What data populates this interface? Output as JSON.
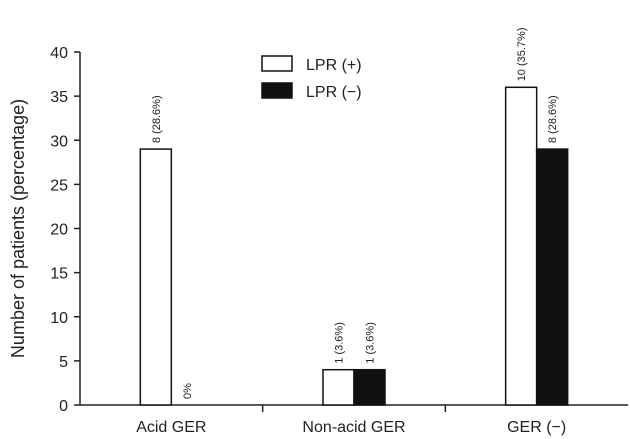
{
  "chart_data": {
    "type": "bar",
    "categories": [
      "Acid GER",
      "Non-acid GER",
      "GER (−)"
    ],
    "series": [
      {
        "name": "LPR (+)",
        "color": "#ffffff",
        "values": [
          29,
          4,
          36
        ],
        "labels": [
          "8 (28.6%)",
          "1 (3.6%)",
          "10 (35.7%)"
        ]
      },
      {
        "name": "LPR (−)",
        "color": "#111111",
        "values": [
          0,
          4,
          29
        ],
        "labels": [
          "0%",
          "1 (3.6%)",
          "8 (28.6%)"
        ]
      }
    ],
    "ylabel": "Number of patients (percentage)",
    "xlabel": "",
    "ylim": [
      0,
      40
    ],
    "yticks": [
      "0",
      "5",
      "10",
      "15",
      "20",
      "25",
      "30",
      "35",
      "40"
    ],
    "legend_position": "top-center",
    "grid": false
  }
}
